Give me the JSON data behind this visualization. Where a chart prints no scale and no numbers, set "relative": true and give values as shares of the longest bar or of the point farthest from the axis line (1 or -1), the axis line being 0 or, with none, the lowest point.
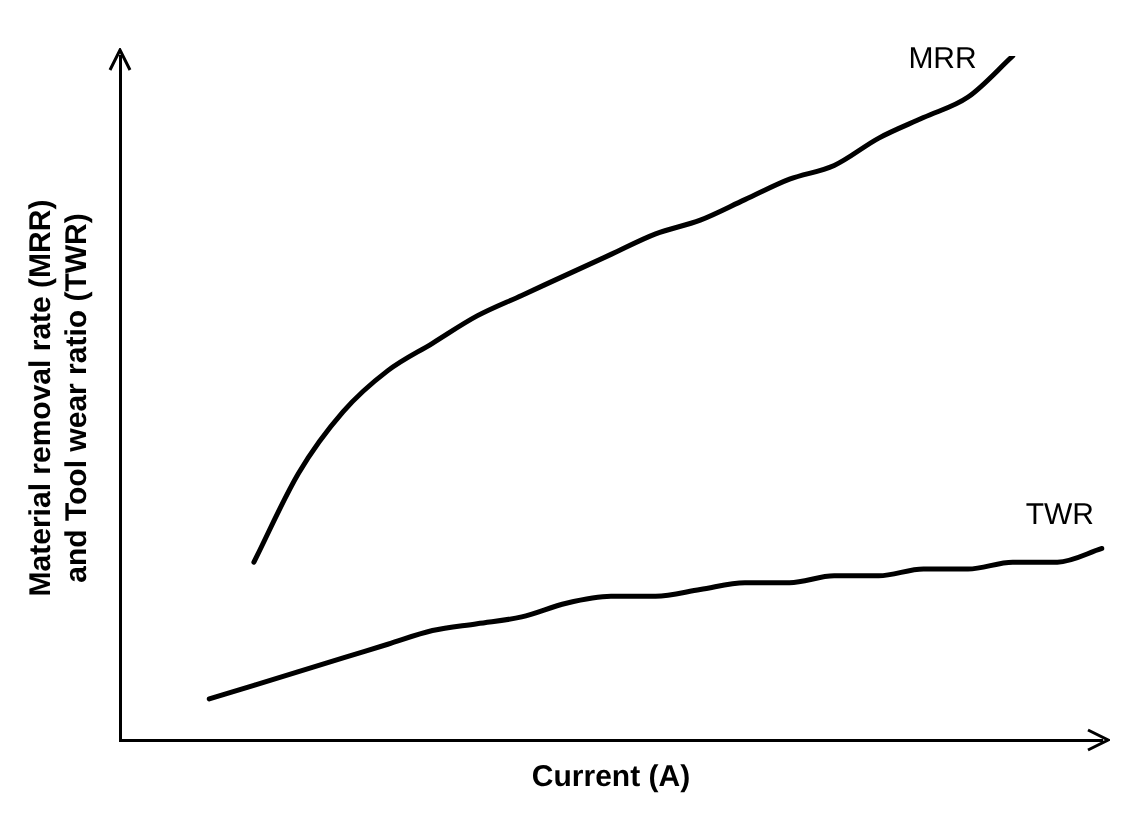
{
  "chart_data": {
    "type": "line",
    "relative": true,
    "xlabel": "Current (A)",
    "ylabel": "Material removal rate (MRR)\nand Tool wear ratio (TWR)",
    "categories": [
      null,
      null,
      null,
      null,
      null,
      null,
      null,
      null,
      null,
      null,
      null,
      null,
      null,
      null,
      null,
      null,
      null,
      null,
      null,
      null,
      null,
      null,
      null
    ],
    "legend": false,
    "grid": false,
    "marker": "none",
    "line_style": "solid",
    "series": [
      {
        "name": "MRR",
        "color": "#000000",
        "values": [
          null,
          null,
          null,
          0.26,
          0.39,
          0.48,
          0.54,
          0.58,
          0.62,
          0.65,
          0.68,
          0.71,
          0.74,
          0.76,
          0.79,
          0.82,
          0.84,
          0.88,
          0.91,
          0.94,
          1.0,
          null,
          null
        ]
      },
      {
        "name": "TWR",
        "color": "#000000",
        "values": [
          null,
          null,
          0.06,
          0.08,
          0.1,
          0.12,
          0.14,
          0.16,
          0.17,
          0.18,
          0.2,
          0.21,
          0.21,
          0.22,
          0.23,
          0.23,
          0.24,
          0.24,
          0.25,
          0.25,
          0.26,
          0.26,
          0.28
        ]
      }
    ]
  }
}
